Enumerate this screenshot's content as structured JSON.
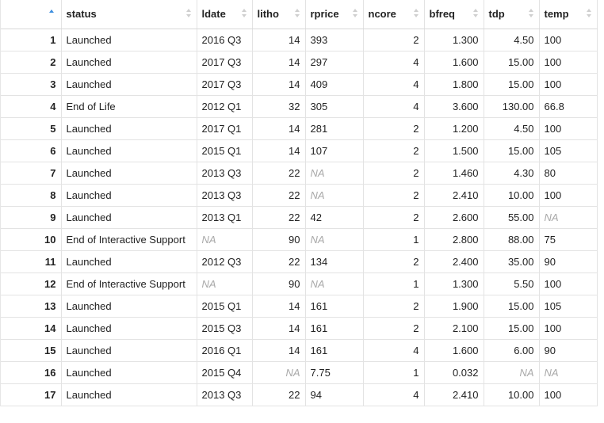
{
  "columns": [
    "",
    "status",
    "ldate",
    "litho",
    "rprice",
    "ncore",
    "bfreq",
    "tdp",
    "temp"
  ],
  "rows": [
    {
      "n": "1",
      "status": "Launched",
      "ldate": "2016 Q3",
      "litho": "14",
      "rprice": "393",
      "ncore": "2",
      "bfreq": "1.300",
      "tdp": "4.50",
      "temp": "100"
    },
    {
      "n": "2",
      "status": "Launched",
      "ldate": "2017 Q3",
      "litho": "14",
      "rprice": "297",
      "ncore": "4",
      "bfreq": "1.600",
      "tdp": "15.00",
      "temp": "100"
    },
    {
      "n": "3",
      "status": "Launched",
      "ldate": "2017 Q3",
      "litho": "14",
      "rprice": "409",
      "ncore": "4",
      "bfreq": "1.800",
      "tdp": "15.00",
      "temp": "100"
    },
    {
      "n": "4",
      "status": "End of Life",
      "ldate": "2012 Q1",
      "litho": "32",
      "rprice": "305",
      "ncore": "4",
      "bfreq": "3.600",
      "tdp": "130.00",
      "temp": "66.8"
    },
    {
      "n": "5",
      "status": "Launched",
      "ldate": "2017 Q1",
      "litho": "14",
      "rprice": "281",
      "ncore": "2",
      "bfreq": "1.200",
      "tdp": "4.50",
      "temp": "100"
    },
    {
      "n": "6",
      "status": "Launched",
      "ldate": "2015 Q1",
      "litho": "14",
      "rprice": "107",
      "ncore": "2",
      "bfreq": "1.500",
      "tdp": "15.00",
      "temp": "105"
    },
    {
      "n": "7",
      "status": "Launched",
      "ldate": "2013 Q3",
      "litho": "22",
      "rprice": "NA",
      "ncore": "2",
      "bfreq": "1.460",
      "tdp": "4.30",
      "temp": "80"
    },
    {
      "n": "8",
      "status": "Launched",
      "ldate": "2013 Q3",
      "litho": "22",
      "rprice": "NA",
      "ncore": "2",
      "bfreq": "2.410",
      "tdp": "10.00",
      "temp": "100"
    },
    {
      "n": "9",
      "status": "Launched",
      "ldate": "2013 Q1",
      "litho": "22",
      "rprice": "42",
      "ncore": "2",
      "bfreq": "2.600",
      "tdp": "55.00",
      "temp": "NA"
    },
    {
      "n": "10",
      "status": "End of Interactive Support",
      "ldate": "NA",
      "litho": "90",
      "rprice": "NA",
      "ncore": "1",
      "bfreq": "2.800",
      "tdp": "88.00",
      "temp": "75"
    },
    {
      "n": "11",
      "status": "Launched",
      "ldate": "2012 Q3",
      "litho": "22",
      "rprice": "134",
      "ncore": "2",
      "bfreq": "2.400",
      "tdp": "35.00",
      "temp": "90"
    },
    {
      "n": "12",
      "status": "End of Interactive Support",
      "ldate": "NA",
      "litho": "90",
      "rprice": "NA",
      "ncore": "1",
      "bfreq": "1.300",
      "tdp": "5.50",
      "temp": "100"
    },
    {
      "n": "13",
      "status": "Launched",
      "ldate": "2015 Q1",
      "litho": "14",
      "rprice": "161",
      "ncore": "2",
      "bfreq": "1.900",
      "tdp": "15.00",
      "temp": "105"
    },
    {
      "n": "14",
      "status": "Launched",
      "ldate": "2015 Q3",
      "litho": "14",
      "rprice": "161",
      "ncore": "2",
      "bfreq": "2.100",
      "tdp": "15.00",
      "temp": "100"
    },
    {
      "n": "15",
      "status": "Launched",
      "ldate": "2016 Q1",
      "litho": "14",
      "rprice": "161",
      "ncore": "4",
      "bfreq": "1.600",
      "tdp": "6.00",
      "temp": "90"
    },
    {
      "n": "16",
      "status": "Launched",
      "ldate": "2015 Q4",
      "litho": "NA",
      "rprice": "7.75",
      "ncore": "1",
      "bfreq": "0.032",
      "tdp": "NA",
      "temp": "NA"
    },
    {
      "n": "17",
      "status": "Launched",
      "ldate": "2013 Q3",
      "litho": "22",
      "rprice": "94",
      "ncore": "4",
      "bfreq": "2.410",
      "tdp": "10.00",
      "temp": "100"
    }
  ],
  "na_color": "#a8a8a8",
  "sort_active_color": "#3a8dde"
}
